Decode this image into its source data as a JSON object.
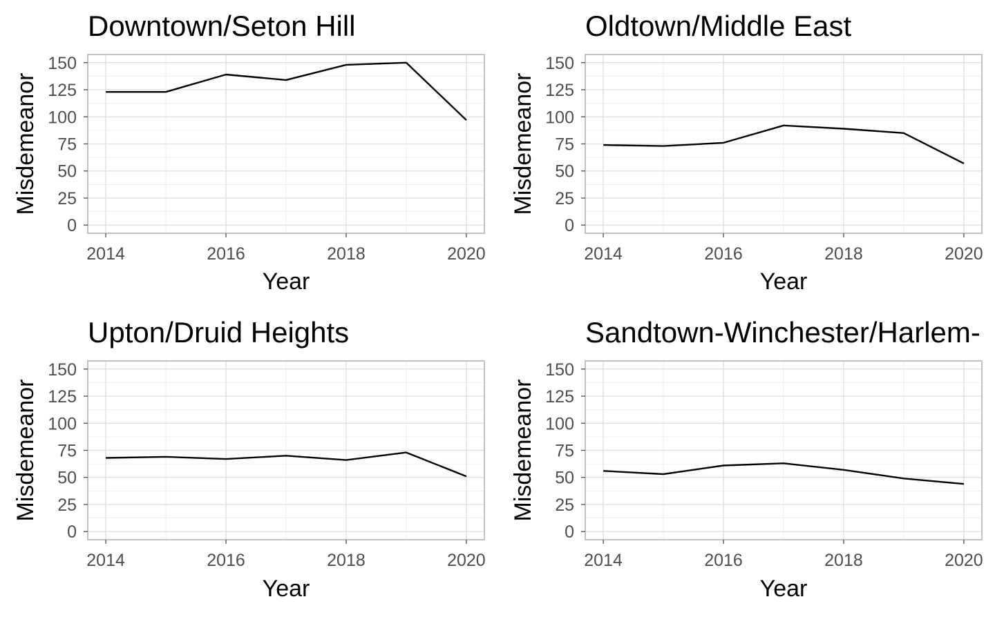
{
  "chart_data": [
    {
      "type": "line",
      "title": "Downtown/Seton Hill",
      "xlabel": "Year",
      "ylabel": "Misdemeanor",
      "x": [
        2014,
        2015,
        2016,
        2017,
        2018,
        2019,
        2020
      ],
      "series": [
        {
          "values": [
            123,
            123,
            139,
            134,
            148,
            150,
            97
          ]
        }
      ],
      "xlim": [
        2013.7,
        2020.3
      ],
      "ylim": [
        -7.5,
        157.5
      ],
      "xticks": [
        2014,
        2016,
        2018,
        2020
      ],
      "yticks": [
        0,
        25,
        50,
        75,
        100,
        125,
        150
      ],
      "grid": true
    },
    {
      "type": "line",
      "title": "Oldtown/Middle East",
      "xlabel": "Year",
      "ylabel": "Misdemeanor",
      "x": [
        2014,
        2015,
        2016,
        2017,
        2018,
        2019,
        2020
      ],
      "series": [
        {
          "values": [
            74,
            73,
            76,
            92,
            89,
            85,
            57
          ]
        }
      ],
      "xlim": [
        2013.7,
        2020.3
      ],
      "ylim": [
        -7.5,
        157.5
      ],
      "xticks": [
        2014,
        2016,
        2018,
        2020
      ],
      "yticks": [
        0,
        25,
        50,
        75,
        100,
        125,
        150
      ],
      "grid": true
    },
    {
      "type": "line",
      "title": "Upton/Druid Heights",
      "xlabel": "Year",
      "ylabel": "Misdemeanor",
      "x": [
        2014,
        2015,
        2016,
        2017,
        2018,
        2019,
        2020
      ],
      "series": [
        {
          "values": [
            68,
            69,
            67,
            70,
            66,
            73,
            51
          ]
        }
      ],
      "xlim": [
        2013.7,
        2020.3
      ],
      "ylim": [
        -7.5,
        157.5
      ],
      "xticks": [
        2014,
        2016,
        2018,
        2020
      ],
      "yticks": [
        0,
        25,
        50,
        75,
        100,
        125,
        150
      ],
      "grid": true
    },
    {
      "type": "line",
      "title": "Sandtown-Winchester/Harlem-",
      "xlabel": "Year",
      "ylabel": "Misdemeanor",
      "x": [
        2014,
        2015,
        2016,
        2017,
        2018,
        2019,
        2020
      ],
      "series": [
        {
          "values": [
            56,
            53,
            61,
            63,
            57,
            49,
            44
          ]
        }
      ],
      "xlim": [
        2013.7,
        2020.3
      ],
      "ylim": [
        -7.5,
        157.5
      ],
      "xticks": [
        2014,
        2016,
        2018,
        2020
      ],
      "yticks": [
        0,
        25,
        50,
        75,
        100,
        125,
        150
      ],
      "grid": true
    }
  ]
}
